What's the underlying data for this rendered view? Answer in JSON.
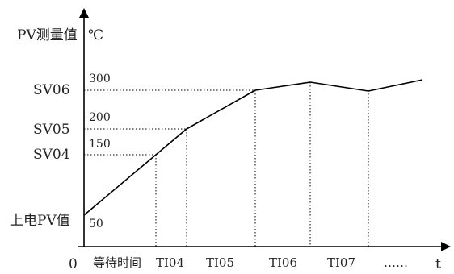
{
  "y_title": "PV测量值",
  "y_unit": "℃",
  "x_title": "t",
  "origin_label": "0",
  "setpoints": [
    {
      "label": "SV06",
      "value": "300"
    },
    {
      "label": "SV05",
      "value": "200"
    },
    {
      "label": "SV04",
      "value": "150"
    },
    {
      "label": "上电PV值",
      "value": "50"
    }
  ],
  "segments": [
    "等待时间",
    "TI04",
    "TI05",
    "TI06",
    "TI07",
    "……"
  ],
  "profile": [
    {
      "time": 0,
      "pv": 50
    },
    {
      "time": 1,
      "pv": 150
    },
    {
      "time": 1.45,
      "pv": 200
    },
    {
      "time": 3.4,
      "pv": 300
    },
    {
      "time": 4.2,
      "pv": 308
    },
    {
      "time": 5.0,
      "pv": 300
    },
    {
      "time": 5.8,
      "pv": 312
    }
  ]
}
